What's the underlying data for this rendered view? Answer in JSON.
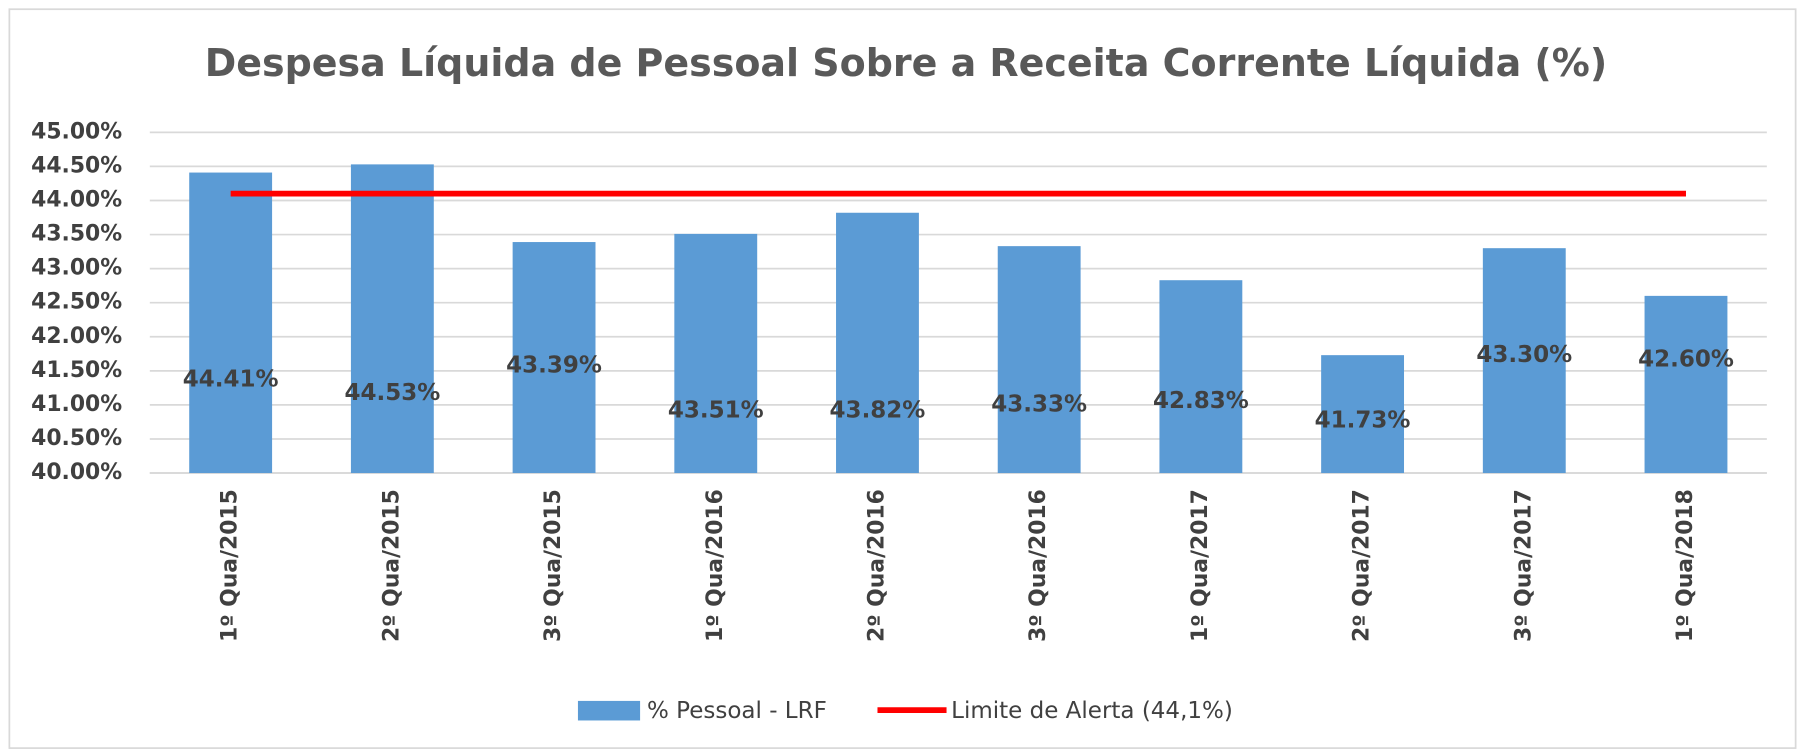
{
  "chart_data": {
    "type": "bar",
    "title": "Despesa Líquida de Pessoal Sobre a Receita Corrente Líquida (%)",
    "categories": [
      "1º Qua/2015",
      "2º Qua/2015",
      "3º Qua/2015",
      "1º Qua/2016",
      "2º Qua/2016",
      "3º Qua/2016",
      "1º Qua/2017",
      "2º Qua/2017",
      "3º Qua/2017",
      "1º Qua/2018"
    ],
    "series": [
      {
        "name": "% Pessoal - LRF",
        "type": "bar",
        "color": "#5b9bd5",
        "values": [
          44.41,
          44.53,
          43.39,
          43.51,
          43.82,
          43.33,
          42.83,
          41.73,
          43.3,
          42.6
        ],
        "value_labels": [
          "44.41%",
          "44.53%",
          "43.39%",
          "43.51%",
          "43.82%",
          "43.33%",
          "42.83%",
          "41.73%",
          "43.30%",
          "42.60%"
        ]
      },
      {
        "name": "Limite de Alerta (44,1%)",
        "type": "line",
        "color": "#ff0000",
        "values": [
          44.1,
          44.1,
          44.1,
          44.1,
          44.1,
          44.1,
          44.1,
          44.1,
          44.1,
          44.1
        ]
      }
    ],
    "ylim": [
      40,
      45
    ],
    "yticks": [
      {
        "value": 40,
        "label": "40.00%"
      },
      {
        "value": 40.5,
        "label": "40.50%"
      },
      {
        "value": 41,
        "label": "41.00%"
      },
      {
        "value": 41.5,
        "label": "41.50%"
      },
      {
        "value": 42,
        "label": "42.00%"
      },
      {
        "value": 42.5,
        "label": "42.50%"
      },
      {
        "value": 43,
        "label": "43.00%"
      },
      {
        "value": 43.5,
        "label": "43.50%"
      },
      {
        "value": 44,
        "label": "44.00%"
      },
      {
        "value": 44.5,
        "label": "44.50%"
      },
      {
        "value": 45,
        "label": "45.00%"
      }
    ],
    "grid": true,
    "legend": "bottom"
  }
}
